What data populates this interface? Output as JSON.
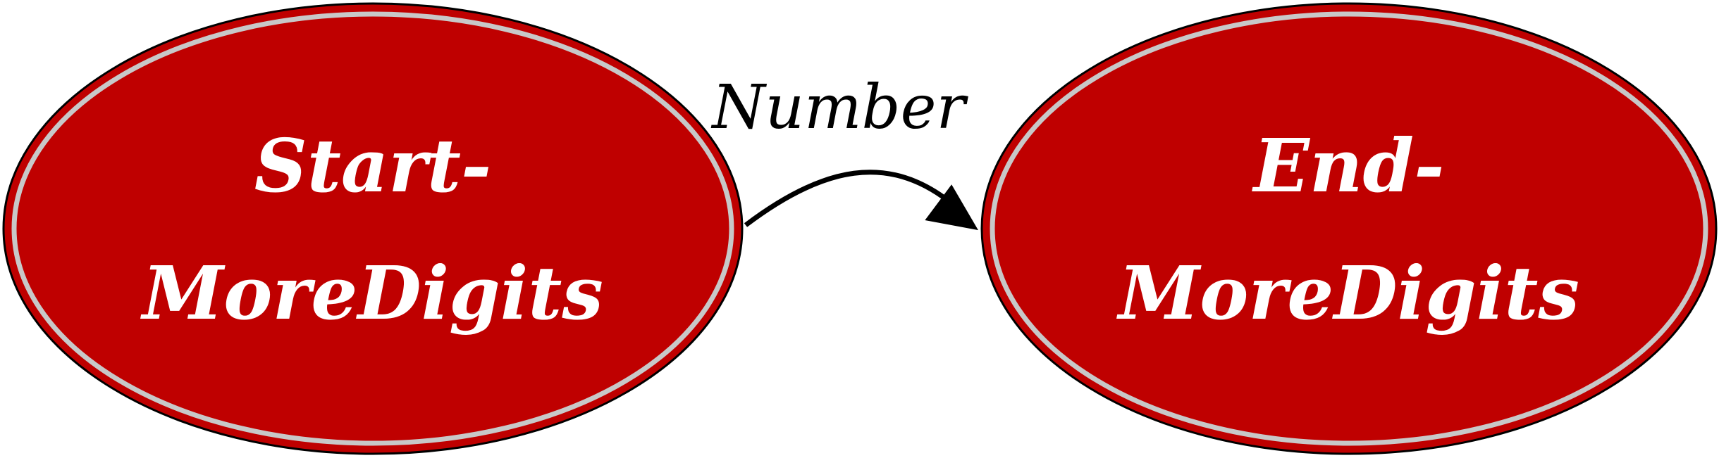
{
  "diagram": {
    "type": "state-graph",
    "colors": {
      "node_fill": "#bf0000",
      "node_ring": "#c8c8c8",
      "node_border": "#000000",
      "node_text": "#ffffff",
      "edge": "#000000"
    },
    "nodes": [
      {
        "id": "start",
        "line1": "Start-",
        "line2": "MoreDigits"
      },
      {
        "id": "end",
        "line1": "End-",
        "line2": "MoreDigits"
      }
    ],
    "edges": [
      {
        "from": "start",
        "to": "end",
        "label": "Number"
      }
    ]
  }
}
